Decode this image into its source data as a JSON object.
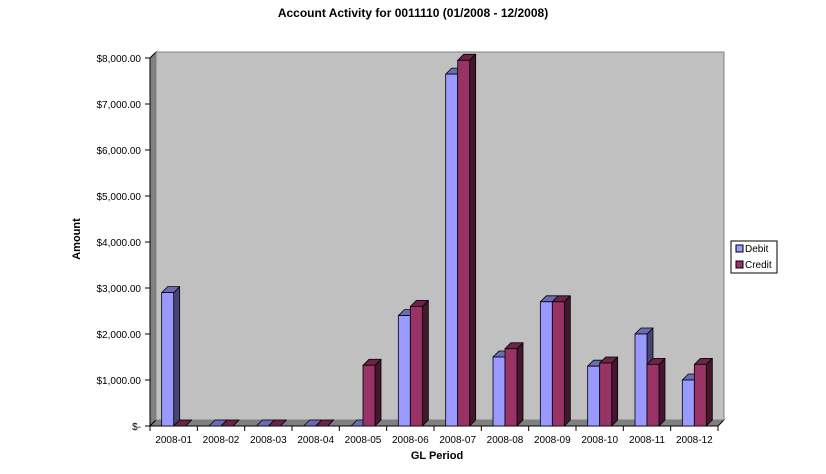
{
  "chart_data": {
    "type": "bar",
    "title": "Account Activity for 0011110 (01/2008 - 12/2008)",
    "xlabel": "GL Period",
    "ylabel": "Amount",
    "categories": [
      "2008-01",
      "2008-02",
      "2008-03",
      "2008-04",
      "2008-05",
      "2008-06",
      "2008-07",
      "2008-08",
      "2008-09",
      "2008-10",
      "2008-11",
      "2008-12"
    ],
    "series": [
      {
        "name": "Debit",
        "color": "#9999ff",
        "values": [
          2900,
          0,
          0,
          0,
          0,
          2400,
          7650,
          1500,
          2700,
          1300,
          2000,
          1000
        ]
      },
      {
        "name": "Credit",
        "color": "#993366",
        "values": [
          0,
          0,
          0,
          0,
          1320,
          2600,
          7950,
          1680,
          2700,
          1370,
          1340,
          1340
        ]
      }
    ],
    "ylim": [
      0,
      8000
    ],
    "yticks": [
      0,
      1000,
      2000,
      3000,
      4000,
      5000,
      6000,
      7000,
      8000
    ],
    "ytick_labels": [
      "$-",
      "$1,000.00",
      "$2,000.00",
      "$3,000.00",
      "$4,000.00",
      "$5,000.00",
      "$6,000.00",
      "$7,000.00",
      "$8,000.00"
    ],
    "plot_background": "#c0c0c0",
    "grid": false,
    "legend_position": "right"
  }
}
